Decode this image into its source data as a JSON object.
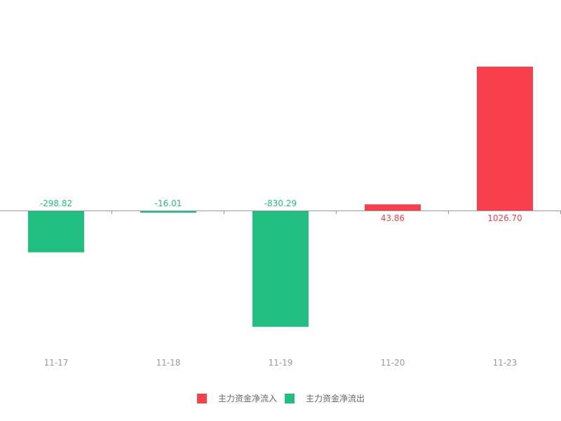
{
  "chart_data": {
    "type": "bar",
    "categories": [
      "11-17",
      "11-18",
      "11-19",
      "11-20",
      "11-23"
    ],
    "values": [
      -298.82,
      -16.01,
      -830.29,
      43.86,
      1026.7
    ],
    "value_labels": [
      "-298.82",
      "-16.01",
      "-830.29",
      "43.86",
      "1026.70"
    ],
    "legend": {
      "placement": "bottom-center",
      "items": [
        {
          "name": "主力资金净流入",
          "color": "#f93f4d"
        },
        {
          "name": "主力资金净流出",
          "color": "#21bd81"
        }
      ]
    },
    "colors": {
      "inflow": "#f93f4d",
      "outflow": "#21bd81",
      "axis": "#999999"
    },
    "grid": false
  }
}
